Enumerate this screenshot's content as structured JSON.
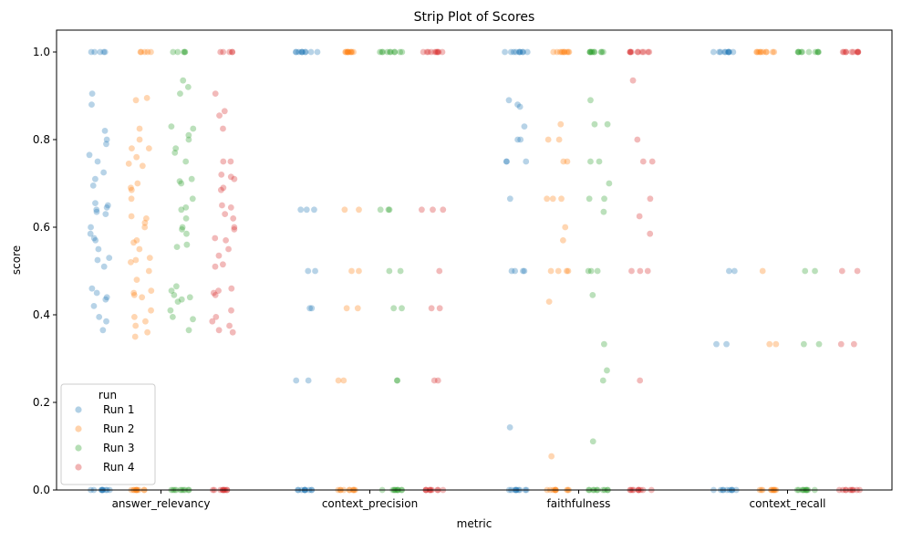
{
  "chart_data": {
    "type": "scatter",
    "subtype": "strip",
    "title": "Strip Plot of Scores",
    "xlabel": "metric",
    "ylabel": "score",
    "ylim": [
      0,
      1.05
    ],
    "yticks": [
      0.0,
      0.2,
      0.4,
      0.6,
      0.8,
      1.0
    ],
    "ytick_labels": [
      "0.0",
      "0.2",
      "0.4",
      "0.6",
      "0.8",
      "1.0"
    ],
    "categories": [
      "answer_relevancy",
      "context_precision",
      "faithfulness",
      "context_recall"
    ],
    "grid": false,
    "legend": {
      "title": "run",
      "placement": "lower-left"
    },
    "series": [
      {
        "name": "Run 1",
        "color": "#1f77b4",
        "values": [
          [
            0.0,
            0.0,
            0.0,
            0.0,
            0.0,
            0.0,
            0.0,
            0.0,
            0.0,
            0.0,
            1.0,
            1.0,
            1.0,
            1.0,
            1.0,
            0.905,
            0.88,
            0.82,
            0.8,
            0.79,
            0.765,
            0.75,
            0.725,
            0.71,
            0.695,
            0.655,
            0.65,
            0.645,
            0.64,
            0.635,
            0.63,
            0.6,
            0.585,
            0.575,
            0.57,
            0.55,
            0.53,
            0.525,
            0.51,
            0.46,
            0.45,
            0.44,
            0.435,
            0.42,
            0.395,
            0.385,
            0.365
          ],
          [
            0.0,
            0.0,
            0.0,
            0.0,
            0.0,
            0.0,
            0.0,
            0.0,
            0.0,
            0.0,
            1.0,
            1.0,
            1.0,
            1.0,
            1.0,
            1.0,
            1.0,
            1.0,
            1.0,
            1.0,
            0.64,
            0.64,
            0.64,
            0.5,
            0.5,
            0.415,
            0.415,
            0.25,
            0.25
          ],
          [
            0.0,
            0.0,
            0.0,
            0.0,
            0.0,
            0.0,
            0.0,
            0.0,
            0.0,
            0.0,
            1.0,
            1.0,
            1.0,
            1.0,
            1.0,
            1.0,
            1.0,
            1.0,
            1.0,
            1.0,
            0.89,
            0.88,
            0.875,
            0.83,
            0.8,
            0.8,
            0.75,
            0.75,
            0.75,
            0.665,
            0.5,
            0.5,
            0.5,
            0.5,
            0.143
          ],
          [
            0.0,
            0.0,
            0.0,
            0.0,
            0.0,
            0.0,
            0.0,
            0.0,
            0.0,
            0.0,
            1.0,
            1.0,
            1.0,
            1.0,
            1.0,
            1.0,
            1.0,
            1.0,
            1.0,
            1.0,
            0.5,
            0.5,
            0.333,
            0.333
          ]
        ]
      },
      {
        "name": "Run 2",
        "color": "#ff7f0e",
        "values": [
          [
            0.0,
            0.0,
            0.0,
            0.0,
            0.0,
            0.0,
            0.0,
            0.0,
            0.0,
            0.0,
            1.0,
            1.0,
            1.0,
            1.0,
            1.0,
            0.895,
            0.89,
            0.825,
            0.8,
            0.78,
            0.78,
            0.76,
            0.745,
            0.74,
            0.7,
            0.69,
            0.685,
            0.665,
            0.625,
            0.62,
            0.61,
            0.6,
            0.57,
            0.565,
            0.55,
            0.53,
            0.525,
            0.52,
            0.5,
            0.48,
            0.455,
            0.45,
            0.445,
            0.44,
            0.41,
            0.395,
            0.385,
            0.375,
            0.36,
            0.35
          ],
          [
            0.0,
            0.0,
            0.0,
            0.0,
            0.0,
            0.0,
            0.0,
            0.0,
            0.0,
            0.0,
            1.0,
            1.0,
            1.0,
            1.0,
            1.0,
            1.0,
            1.0,
            1.0,
            1.0,
            1.0,
            0.64,
            0.64,
            0.5,
            0.5,
            0.415,
            0.415,
            0.25,
            0.25
          ],
          [
            0.0,
            0.0,
            0.0,
            0.0,
            0.0,
            0.0,
            0.0,
            0.0,
            0.0,
            0.0,
            1.0,
            1.0,
            1.0,
            1.0,
            1.0,
            1.0,
            1.0,
            1.0,
            1.0,
            1.0,
            0.835,
            0.8,
            0.8,
            0.75,
            0.75,
            0.665,
            0.665,
            0.665,
            0.6,
            0.57,
            0.5,
            0.5,
            0.5,
            0.5,
            0.43,
            0.077
          ],
          [
            0.0,
            0.0,
            0.0,
            0.0,
            0.0,
            0.0,
            0.0,
            0.0,
            0.0,
            0.0,
            1.0,
            1.0,
            1.0,
            1.0,
            1.0,
            1.0,
            1.0,
            1.0,
            1.0,
            1.0,
            0.5,
            0.333,
            0.333
          ]
        ]
      },
      {
        "name": "Run 3",
        "color": "#2ca02c",
        "values": [
          [
            0.0,
            0.0,
            0.0,
            0.0,
            0.0,
            0.0,
            0.0,
            0.0,
            0.0,
            0.0,
            1.0,
            1.0,
            1.0,
            1.0,
            1.0,
            0.935,
            0.92,
            0.905,
            0.83,
            0.825,
            0.81,
            0.8,
            0.78,
            0.77,
            0.75,
            0.71,
            0.705,
            0.7,
            0.665,
            0.645,
            0.64,
            0.62,
            0.6,
            0.595,
            0.585,
            0.56,
            0.555,
            0.465,
            0.455,
            0.445,
            0.44,
            0.435,
            0.43,
            0.41,
            0.395,
            0.39,
            0.365
          ],
          [
            0.0,
            0.0,
            0.0,
            0.0,
            0.0,
            0.0,
            0.0,
            0.0,
            0.0,
            0.0,
            1.0,
            1.0,
            1.0,
            1.0,
            1.0,
            1.0,
            1.0,
            1.0,
            1.0,
            1.0,
            0.64,
            0.64,
            0.64,
            0.5,
            0.5,
            0.415,
            0.415,
            0.25,
            0.25
          ],
          [
            0.0,
            0.0,
            0.0,
            0.0,
            0.0,
            0.0,
            0.0,
            0.0,
            0.0,
            0.0,
            1.0,
            1.0,
            1.0,
            1.0,
            1.0,
            1.0,
            1.0,
            1.0,
            1.0,
            1.0,
            0.89,
            0.835,
            0.835,
            0.75,
            0.75,
            0.7,
            0.665,
            0.665,
            0.635,
            0.5,
            0.5,
            0.5,
            0.445,
            0.333,
            0.273,
            0.25,
            0.111
          ],
          [
            0.0,
            0.0,
            0.0,
            0.0,
            0.0,
            0.0,
            0.0,
            0.0,
            0.0,
            0.0,
            1.0,
            1.0,
            1.0,
            1.0,
            1.0,
            1.0,
            1.0,
            1.0,
            1.0,
            1.0,
            0.5,
            0.5,
            0.333,
            0.333
          ]
        ]
      },
      {
        "name": "Run 4",
        "color": "#d62728",
        "values": [
          [
            0.0,
            0.0,
            0.0,
            0.0,
            0.0,
            0.0,
            0.0,
            0.0,
            0.0,
            0.0,
            1.0,
            1.0,
            1.0,
            1.0,
            1.0,
            0.905,
            0.865,
            0.855,
            0.825,
            0.75,
            0.75,
            0.72,
            0.715,
            0.71,
            0.69,
            0.685,
            0.65,
            0.645,
            0.63,
            0.62,
            0.6,
            0.595,
            0.575,
            0.57,
            0.55,
            0.535,
            0.515,
            0.51,
            0.46,
            0.455,
            0.45,
            0.445,
            0.41,
            0.395,
            0.385,
            0.375,
            0.365,
            0.36
          ],
          [
            0.0,
            0.0,
            0.0,
            0.0,
            0.0,
            0.0,
            0.0,
            0.0,
            0.0,
            0.0,
            1.0,
            1.0,
            1.0,
            1.0,
            1.0,
            1.0,
            1.0,
            1.0,
            1.0,
            1.0,
            0.64,
            0.64,
            0.64,
            0.5,
            0.415,
            0.415,
            0.25,
            0.25
          ],
          [
            0.0,
            0.0,
            0.0,
            0.0,
            0.0,
            0.0,
            0.0,
            0.0,
            0.0,
            0.0,
            1.0,
            1.0,
            1.0,
            1.0,
            1.0,
            1.0,
            1.0,
            1.0,
            1.0,
            1.0,
            0.935,
            0.8,
            0.75,
            0.75,
            0.665,
            0.625,
            0.585,
            0.5,
            0.5,
            0.5,
            0.25
          ],
          [
            0.0,
            0.0,
            0.0,
            0.0,
            0.0,
            0.0,
            0.0,
            0.0,
            0.0,
            0.0,
            1.0,
            1.0,
            1.0,
            1.0,
            1.0,
            1.0,
            1.0,
            1.0,
            1.0,
            1.0,
            0.5,
            0.5,
            0.333,
            0.333
          ]
        ]
      }
    ]
  }
}
